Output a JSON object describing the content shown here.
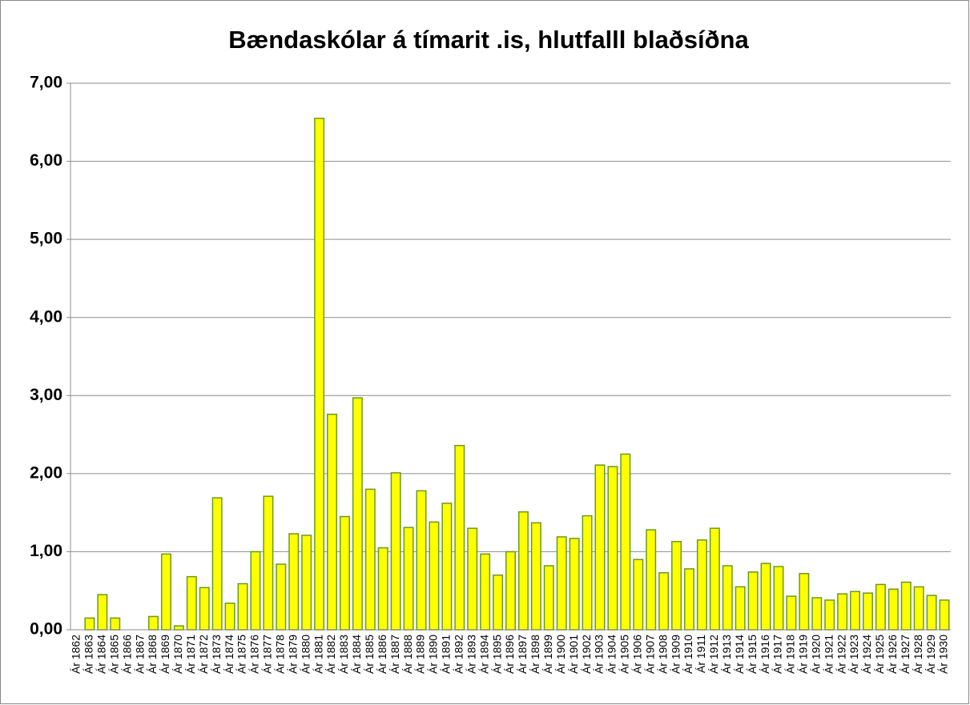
{
  "chart_data": {
    "type": "bar",
    "title": "Bændaskólar á tímarit .is, hlutfalll blaðsíðna",
    "categories": [
      "Ár 1862",
      "Ár 1863",
      "Ár 1864",
      "Ár 1865",
      "Ár 1866",
      "Ár 1867",
      "Ár 1868",
      "Ár 1869",
      "Ár 1870",
      "Ár 1871",
      "Ár 1872",
      "Ár 1873",
      "Ár 1874",
      "Ár 1875",
      "Ár 1876",
      "Ár 1877",
      "Ár 1878",
      "Ár 1879",
      "Ár 1880",
      "Ár 1881",
      "Ár 1882",
      "Ár 1883",
      "Ár 1884",
      "Ár 1885",
      "Ár 1886",
      "Ár 1887",
      "Ár 1888",
      "Ár 1889",
      "Ár 1890",
      "Ár 1891",
      "Ár 1892",
      "Ár 1893",
      "Ár 1894",
      "Ár 1895",
      "Ár 1896",
      "Ár 1897",
      "Ár 1898",
      "Ár 1899",
      "Ár 1900",
      "Ár 1901",
      "Ár 1902",
      "Ár 1903",
      "Ár 1904",
      "Ár 1905",
      "Ár 1906",
      "Ár 1907",
      "Ár 1908",
      "Ár 1909",
      "Ár 1910",
      "Ár 1911",
      "Ár 1912",
      "Ár 1913",
      "Ár 1914",
      "Ár 1915",
      "Ár 1916",
      "Ár 1917",
      "Ár 1918",
      "Ár 1919",
      "Ár 1920",
      "Ár 1921",
      "Ár 1922",
      "Ár 1923",
      "Ár 1924",
      "Ár 1925",
      "Ár 1926",
      "Ár 1927",
      "Ár 1928",
      "Ár 1929",
      "Ár 1930"
    ],
    "values": [
      0,
      0.15,
      0.45,
      0.15,
      0,
      0,
      0.17,
      0.97,
      0.05,
      0.68,
      0.54,
      1.69,
      0.34,
      0.59,
      1.0,
      1.71,
      0.84,
      1.23,
      1.21,
      6.55,
      2.76,
      1.45,
      2.97,
      1.8,
      1.05,
      2.01,
      1.31,
      1.78,
      1.38,
      1.62,
      2.36,
      1.3,
      0.97,
      0.7,
      1.0,
      1.51,
      1.37,
      0.82,
      1.19,
      1.17,
      1.46,
      2.11,
      2.09,
      2.25,
      0.9,
      1.28,
      0.73,
      1.13,
      0.78,
      1.15,
      1.3,
      0.82,
      0.55,
      0.74,
      0.85,
      0.81,
      0.43,
      0.72,
      0.41,
      0.38,
      0.46,
      0.49,
      0.47,
      0.58,
      0.52,
      0.61,
      0.55,
      0.44,
      0.38
    ],
    "color": "#ffff00",
    "edge_color": "#6a9a1f",
    "ylim": [
      0,
      7
    ],
    "yticks": [
      {
        "value": 0,
        "label": "0,00"
      },
      {
        "value": 1,
        "label": "1,00"
      },
      {
        "value": 2,
        "label": "2,00"
      },
      {
        "value": 3,
        "label": "3,00"
      },
      {
        "value": 4,
        "label": "4,00"
      },
      {
        "value": 5,
        "label": "5,00"
      },
      {
        "value": 6,
        "label": "6,00"
      },
      {
        "value": 7,
        "label": "7,00"
      }
    ],
    "grid": true
  }
}
